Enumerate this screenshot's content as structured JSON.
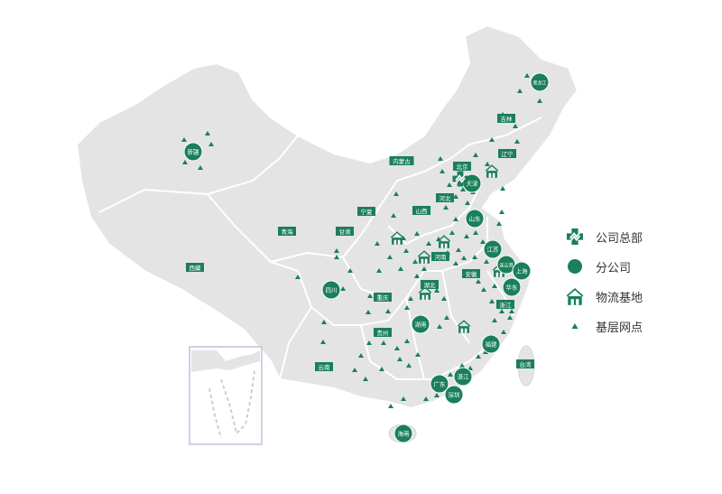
{
  "colors": {
    "accent": "#1a7f5a",
    "land": "#e4e4e4",
    "border": "#ffffff",
    "inset_border": "#b8c4dc"
  },
  "legend": [
    {
      "icon": "headquarters-icon",
      "label": "公司总部"
    },
    {
      "icon": "branch-circle-icon",
      "label": "分公司"
    },
    {
      "icon": "warehouse-icon",
      "label": "物流基地"
    },
    {
      "icon": "triangle-icon",
      "label": "基层网点"
    }
  ],
  "branches": [
    "新疆",
    "四川",
    "湖南",
    "天津",
    "黑龙江",
    "山东",
    "江苏",
    "连云港",
    "上海",
    "华东",
    "福建",
    "湛江",
    "广东",
    "深圳",
    "海南"
  ],
  "region_labels": [
    "青海",
    "西藏",
    "甘肃",
    "宁夏",
    "内蒙古",
    "重庆",
    "贵州",
    "云南",
    "湖北",
    "山西",
    "河北",
    "北京",
    "辽宁",
    "吉林",
    "河南",
    "安徽",
    "浙江",
    "台湾"
  ]
}
